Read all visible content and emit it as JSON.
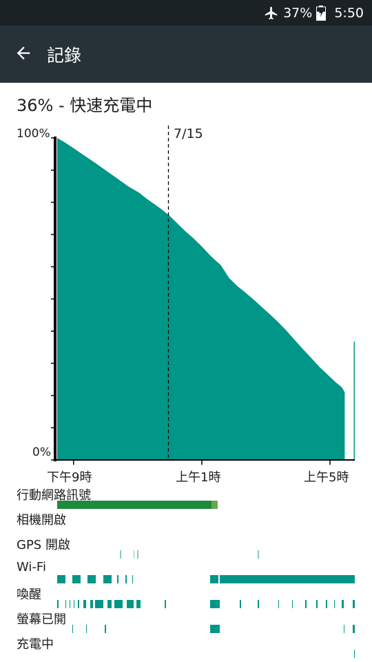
{
  "status_bar": {
    "battery_percent": "37%",
    "time": "5:50",
    "icons": [
      "airplane-mode-icon",
      "battery-charging-icon"
    ]
  },
  "app_bar": {
    "title": "記錄",
    "back_icon": "arrow-back-icon"
  },
  "battery_status": "36% - 快速充電中",
  "colors": {
    "status_bar_bg": "#1b2226",
    "app_bar_bg": "#263238",
    "chart_fill": "#009688",
    "cellular_signal": "#1e8a3c",
    "cellular_signal_weak": "#6aa84f",
    "wifi_and_states": "#009688",
    "gps": "#80cbc4"
  },
  "chart_data": {
    "type": "area",
    "y_min_label": "0%",
    "y_max_label": "100%",
    "ylim": [
      0,
      100
    ],
    "x_tick_labels": [
      "下午9時",
      "上午1時",
      "上午5時"
    ],
    "date_marker": "7/15",
    "series": [
      {
        "values": [
          [
            0,
            100
          ],
          [
            0.3,
            98.5
          ],
          [
            0.6,
            96.8
          ],
          [
            1.0,
            94.5
          ],
          [
            1.4,
            92.2
          ],
          [
            1.8,
            89.8
          ],
          [
            2.2,
            87.4
          ],
          [
            2.6,
            85.0
          ],
          [
            3.0,
            83.0
          ],
          [
            3.3,
            81.0
          ],
          [
            3.6,
            79.2
          ],
          [
            3.8,
            78.0
          ],
          [
            4.1,
            76.0
          ],
          [
            4.4,
            73.5
          ],
          [
            4.7,
            71.0
          ],
          [
            5.0,
            68.8
          ],
          [
            5.3,
            66.3
          ],
          [
            5.6,
            63.6
          ],
          [
            5.8,
            62.0
          ],
          [
            6.0,
            60.5
          ],
          [
            6.3,
            56.5
          ],
          [
            6.6,
            54.0
          ],
          [
            6.9,
            52.0
          ],
          [
            7.2,
            49.8
          ],
          [
            7.5,
            47.5
          ],
          [
            7.8,
            45.2
          ],
          [
            8.1,
            42.8
          ],
          [
            8.4,
            40.2
          ],
          [
            8.7,
            37.3
          ],
          [
            9.0,
            34.5
          ],
          [
            9.3,
            31.8
          ],
          [
            9.6,
            29.0
          ],
          [
            9.9,
            26.6
          ],
          [
            10.2,
            24.2
          ],
          [
            10.44,
            22.5
          ],
          [
            10.54,
            21.0
          ]
        ]
      },
      {
        "values": [
          [
            10.87,
            0
          ],
          [
            10.87,
            37.0
          ],
          [
            10.91,
            36.5
          ],
          [
            10.91,
            0
          ]
        ]
      }
    ]
  },
  "rows": [
    {
      "label": "行動網路訊號",
      "color": "#1e8a3c",
      "segments": [
        [
          0.0,
          5.65,
          "#1e8a3c"
        ],
        [
          5.65,
          5.88,
          "#6aa84f"
        ]
      ]
    },
    {
      "label": "相機開啟",
      "segments": []
    },
    {
      "label": "GPS 開啟",
      "color": "#80cbc4",
      "segments": [
        [
          2.3,
          2.33,
          "#80cbc4"
        ],
        [
          2.8,
          2.83,
          "#80cbc4"
        ],
        [
          2.93,
          2.96,
          "#80cbc4"
        ],
        [
          7.35,
          7.38,
          "#80cbc4"
        ]
      ]
    },
    {
      "label": "Wi-Fi",
      "color": "#009688",
      "segments": [
        [
          0.0,
          0.3,
          "#009688"
        ],
        [
          0.55,
          0.85,
          "#009688"
        ],
        [
          1.12,
          1.42,
          "#009688"
        ],
        [
          1.7,
          2.0,
          "#009688"
        ],
        [
          2.2,
          2.25,
          "#009688"
        ],
        [
          2.5,
          2.53,
          "#009688"
        ],
        [
          2.75,
          2.78,
          "#009688"
        ],
        [
          5.6,
          5.9,
          "#009688"
        ],
        [
          5.95,
          10.91,
          "#009688"
        ]
      ]
    },
    {
      "label": "喚醒",
      "color": "#009688",
      "segments": [
        [
          0.0,
          0.05,
          "#009688"
        ],
        [
          0.3,
          0.33,
          "#009688"
        ],
        [
          0.45,
          0.48,
          "#009688"
        ],
        [
          0.6,
          0.63,
          "#009688"
        ],
        [
          0.75,
          0.8,
          "#009688"
        ],
        [
          0.95,
          1.05,
          "#009688"
        ],
        [
          1.2,
          1.3,
          "#009688"
        ],
        [
          1.4,
          1.7,
          "#009688"
        ],
        [
          1.85,
          2.0,
          "#009688"
        ],
        [
          2.1,
          2.4,
          "#009688"
        ],
        [
          2.55,
          2.8,
          "#009688"
        ],
        [
          2.9,
          3.05,
          "#009688"
        ],
        [
          3.95,
          3.98,
          "#009688"
        ],
        [
          5.6,
          5.95,
          "#009688"
        ],
        [
          6.7,
          6.73,
          "#009688"
        ],
        [
          7.35,
          7.38,
          "#009688"
        ],
        [
          8.1,
          8.13,
          "#009688"
        ],
        [
          8.6,
          8.63,
          "#009688"
        ],
        [
          9.1,
          9.13,
          "#009688"
        ],
        [
          9.5,
          9.53,
          "#009688"
        ],
        [
          9.85,
          9.88,
          "#009688"
        ],
        [
          10.15,
          10.18,
          "#009688"
        ],
        [
          10.44,
          10.5,
          "#009688"
        ],
        [
          10.82,
          10.9,
          "#009688"
        ]
      ]
    },
    {
      "label": "螢幕已開",
      "color": "#009688",
      "segments": [
        [
          0.55,
          0.58,
          "#009688"
        ],
        [
          1.05,
          1.08,
          "#009688"
        ],
        [
          1.75,
          1.78,
          "#009688"
        ],
        [
          5.6,
          5.95,
          "#009688"
        ],
        [
          10.5,
          10.53,
          "#009688"
        ],
        [
          10.82,
          10.9,
          "#009688"
        ]
      ]
    },
    {
      "label": "充電中",
      "color": "#009688",
      "segments": [
        [
          10.87,
          10.91,
          "#009688"
        ]
      ]
    }
  ]
}
